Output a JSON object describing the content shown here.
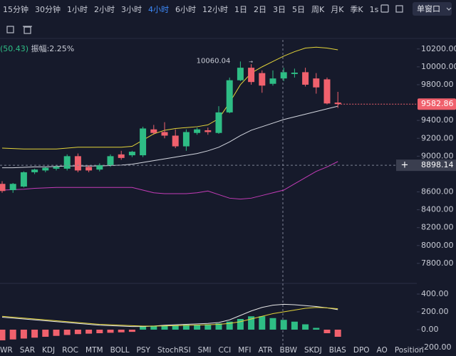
{
  "toolbar": {
    "intervals": [
      "15分钟",
      "30分钟",
      "1小时",
      "2小时",
      "3小时",
      "4小时",
      "6小时",
      "12小时",
      "1日",
      "2日",
      "3日",
      "5日",
      "周K",
      "月K",
      "季K",
      "1s"
    ],
    "selected": 5,
    "window_mode": "单窗口"
  },
  "info": {
    "value": "(50.43)",
    "amplitude": "振幅:2.25%"
  },
  "chart_data": [
    {
      "type": "candlestick",
      "colors": {
        "up": "#2ebd85",
        "down": "#f0616d"
      },
      "candles": {
        "open": [
          8690,
          8620,
          8660,
          8820,
          8840,
          8860,
          8860,
          9000,
          8880,
          8850,
          8900,
          9020,
          9010,
          9010,
          9300,
          9270,
          9230,
          9110,
          9260,
          9290,
          9260,
          9490,
          9850,
          9990,
          9930,
          9810,
          9870,
          9920,
          9940,
          9870,
          9860,
          9600
        ],
        "high": [
          8720,
          8700,
          8830,
          8860,
          8880,
          8900,
          9020,
          9030,
          8900,
          8920,
          9020,
          9060,
          9060,
          9330,
          9350,
          9380,
          9300,
          9300,
          9320,
          9320,
          9560,
          9880,
          10060.04,
          10030,
          9960,
          9960,
          9990,
          9980,
          9990,
          9930,
          9880,
          9720
        ],
        "low": [
          8590,
          8590,
          8650,
          8800,
          8820,
          8840,
          8840,
          8820,
          8820,
          8830,
          8880,
          8960,
          8990,
          8990,
          9240,
          9200,
          9090,
          9060,
          9240,
          9240,
          9250,
          9480,
          9840,
          9800,
          9710,
          9790,
          9840,
          9880,
          9780,
          9700,
          9580,
          9540
        ],
        "close": [
          8610,
          8690,
          8820,
          8850,
          8870,
          8880,
          9000,
          8840,
          8840,
          8900,
          9000,
          8980,
          9050,
          9310,
          9260,
          9230,
          9110,
          9270,
          9300,
          9270,
          9490,
          9850,
          9990,
          9830,
          9790,
          9870,
          9940,
          9935,
          9800,
          9770,
          9590,
          9582.86
        ]
      },
      "series": [
        {
          "color": "#e3d43a",
          "values": [
            9090,
            9085,
            9080,
            9080,
            9080,
            9080,
            9090,
            9100,
            9100,
            9100,
            9100,
            9100,
            9110,
            9180,
            9250,
            9290,
            9310,
            9320,
            9330,
            9350,
            9420,
            9600,
            9800,
            9930,
            10000,
            10060,
            10120,
            10170,
            10210,
            10220,
            10210,
            10190
          ]
        },
        {
          "color": "#d3d6df",
          "values": [
            8870,
            8870,
            8875,
            8880,
            8880,
            8885,
            8890,
            8890,
            8890,
            8890,
            8895,
            8900,
            8910,
            8930,
            8950,
            8970,
            8990,
            9010,
            9030,
            9060,
            9100,
            9160,
            9230,
            9290,
            9330,
            9370,
            9410,
            9440,
            9470,
            9500,
            9530,
            9560
          ]
        },
        {
          "color": "#c43cb8",
          "values": [
            8620,
            8625,
            8630,
            8640,
            8645,
            8650,
            8650,
            8650,
            8650,
            8650,
            8650,
            8650,
            8650,
            8620,
            8590,
            8580,
            8580,
            8580,
            8590,
            8610,
            8570,
            8530,
            8520,
            8530,
            8560,
            8590,
            8620,
            8690,
            8760,
            8830,
            8880,
            8940
          ]
        }
      ],
      "ylim": [
        7600,
        10270
      ],
      "yticks": [
        {
          "value": 10200,
          "label": "10200.00"
        },
        {
          "value": 10000,
          "label": "10000.00"
        },
        {
          "value": 9800,
          "label": "9800.00"
        },
        {
          "value": 9400,
          "label": "9400.00"
        },
        {
          "value": 9200,
          "label": "9200.00"
        },
        {
          "value": 9000,
          "label": "9000.00"
        },
        {
          "value": 8600,
          "label": "8600.00"
        },
        {
          "value": 8400,
          "label": "8400.00"
        },
        {
          "value": 8200,
          "label": "8200.00"
        },
        {
          "value": 8000,
          "label": "8000.00"
        },
        {
          "value": 7800,
          "label": "7800.00"
        }
      ],
      "crosshair_price": 8898.14
    },
    {
      "type": "macd",
      "colors": {
        "up": "#2ebd85",
        "down": "#f0616d"
      },
      "values": [
        -120,
        -110,
        -100,
        -90,
        -80,
        -70,
        -60,
        -50,
        -45,
        -40,
        -35,
        -30,
        -25,
        40,
        45,
        50,
        50,
        55,
        55,
        60,
        70,
        90,
        120,
        150,
        150,
        130,
        110,
        90,
        60,
        20,
        -40,
        -80
      ],
      "series": [
        {
          "color": "#e6e6e6",
          "values": [
            140,
            130,
            120,
            110,
            100,
            90,
            80,
            70,
            60,
            50,
            45,
            40,
            35,
            35,
            40,
            50,
            55,
            60,
            65,
            70,
            80,
            110,
            160,
            210,
            250,
            275,
            285,
            280,
            270,
            260,
            245,
            225
          ]
        },
        {
          "color": "#e3d43a",
          "values": [
            150,
            140,
            130,
            120,
            110,
            100,
            90,
            80,
            70,
            60,
            55,
            50,
            45,
            40,
            40,
            42,
            45,
            48,
            52,
            55,
            60,
            70,
            90,
            120,
            150,
            180,
            200,
            220,
            240,
            250,
            245,
            235
          ]
        }
      ],
      "ylim": [
        -200,
        520
      ],
      "yticks": [
        {
          "value": 400,
          "label": "400.00"
        },
        {
          "value": 200,
          "label": "200.00"
        },
        {
          "value": 0,
          "label": "0.00"
        },
        {
          "value": -200,
          "label": "-200.00"
        }
      ]
    }
  ],
  "indicator_tabs": [
    "WR",
    "SAR",
    "KDJ",
    "ROC",
    "MTM",
    "BOLL",
    "PSY",
    "StochRSI",
    "SMI",
    "CCI",
    "MFI",
    "ATR",
    "BBW",
    "SKDJ",
    "BIAS",
    "DPO",
    "AO",
    "Position"
  ]
}
